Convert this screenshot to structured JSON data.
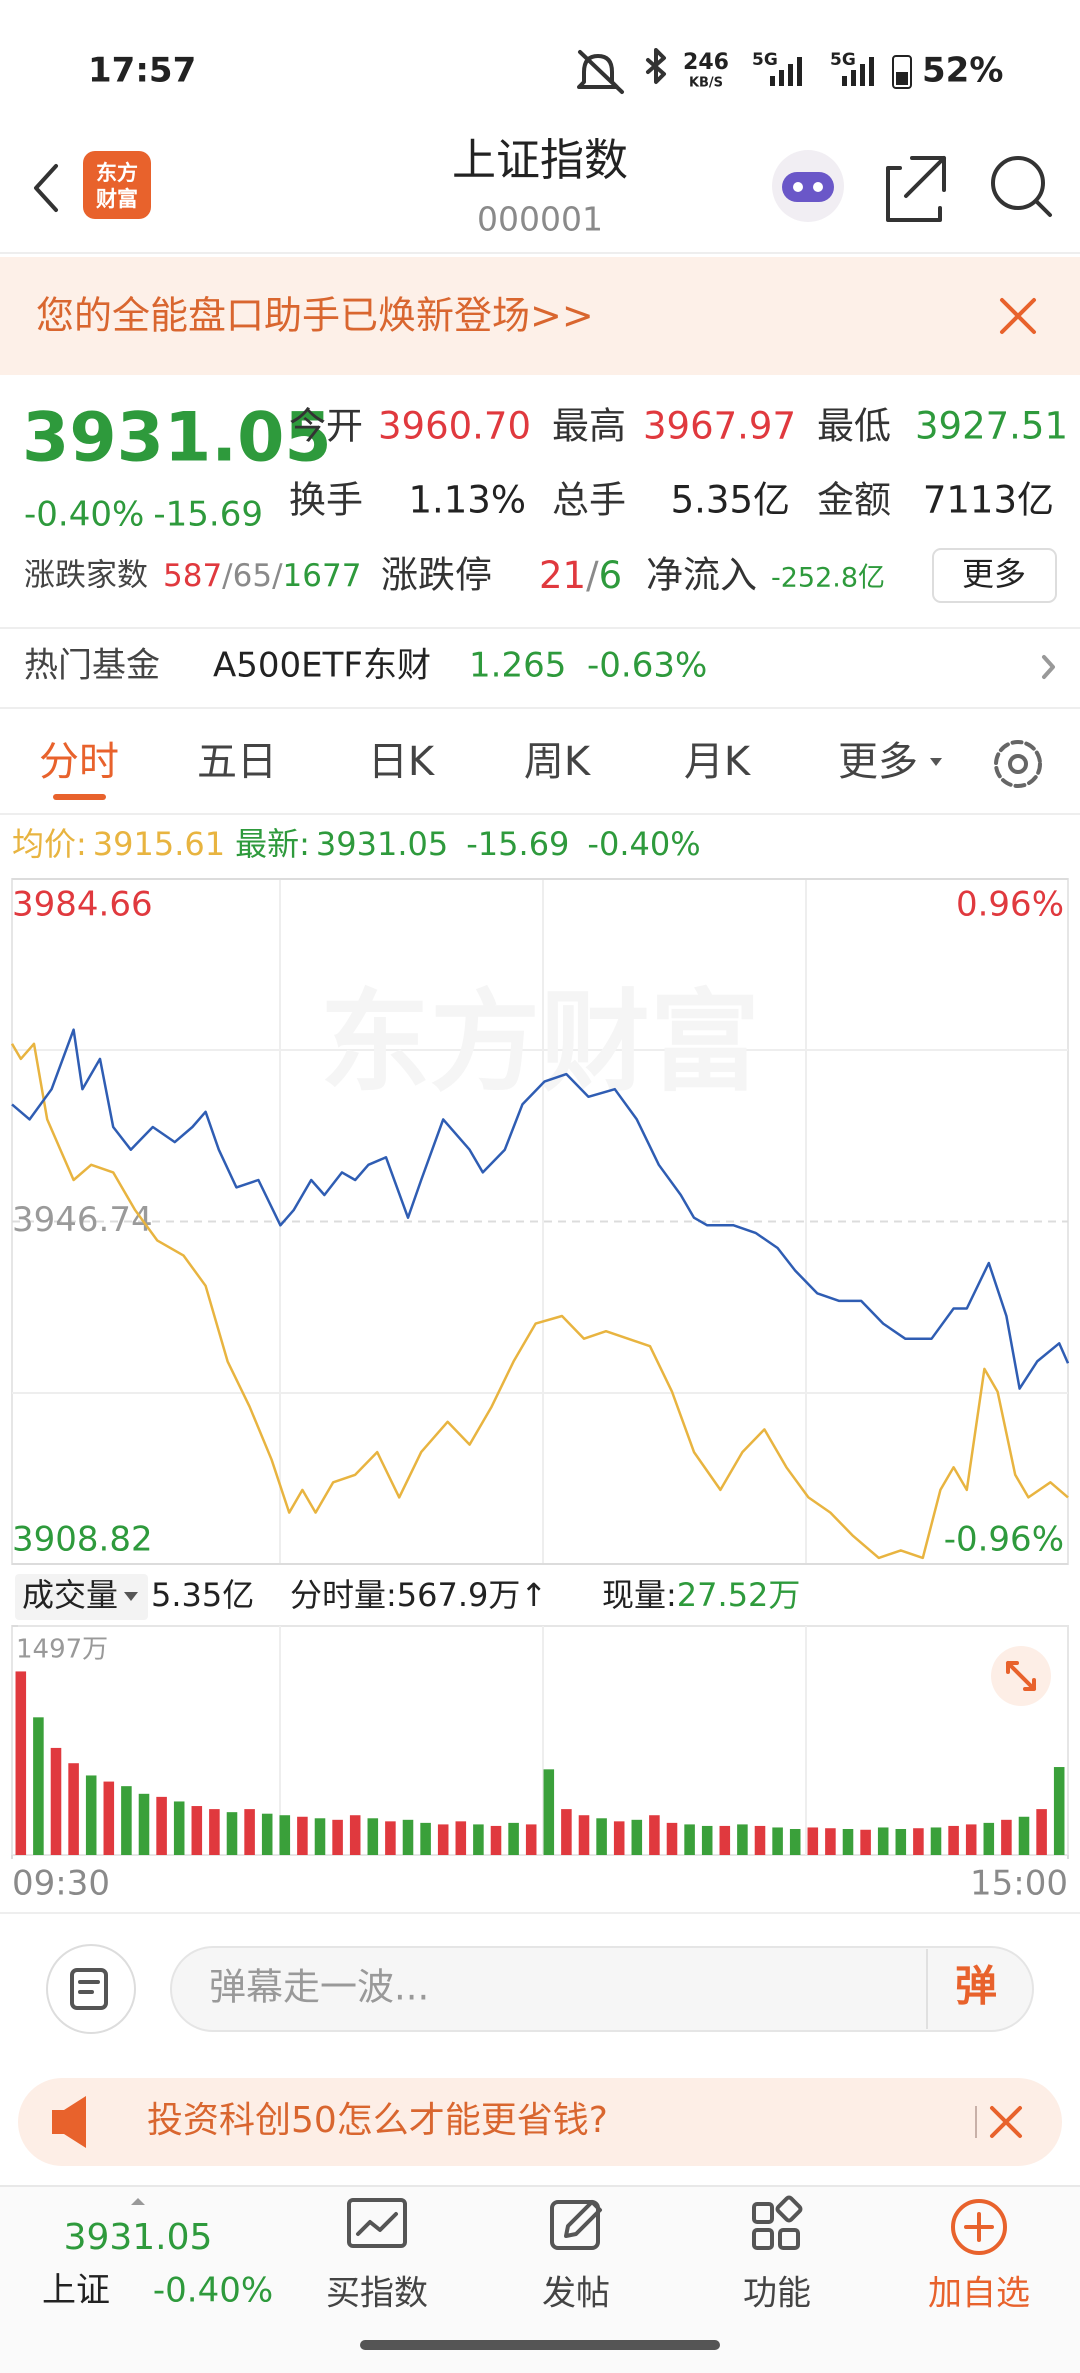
{
  "status_bar": {
    "time": "17:57",
    "net_speed": "246",
    "net_unit": "KB/S",
    "net1": "5G",
    "net2": "5G",
    "battery": "52%"
  },
  "header": {
    "logo_top": "东方",
    "logo_bottom": "财富",
    "title": "上证指数",
    "code": "000001"
  },
  "banner": {
    "text": "您的全能盘口助手已焕新登场>>"
  },
  "quote": {
    "price": "3931.05",
    "change_pct": "-0.40%",
    "change": "-15.69",
    "open_label": "今开",
    "open": "3960.70",
    "high_label": "最高",
    "high": "3967.97",
    "low_label": "最低",
    "low": "3927.51",
    "turnover_label": "换手",
    "turnover": "1.13%",
    "volume_label": "总手",
    "volume": "5.35亿",
    "amount_label": "金额",
    "amount": "7113亿",
    "breadth_label": "涨跌家数",
    "breadth": [
      "587",
      "/",
      "65",
      "/",
      "1677"
    ],
    "limit_label": "涨跌停",
    "limit": [
      "21",
      "/",
      "6"
    ],
    "inflow_label": "净流入",
    "inflow": "-252.8亿",
    "more": "更多"
  },
  "hot_fund": {
    "label": "热门基金",
    "name": "A500ETF东财",
    "price": "1.265",
    "change": "-0.63%"
  },
  "tabs": [
    "分时",
    "五日",
    "日K",
    "周K",
    "月K",
    "更多"
  ],
  "info_line": {
    "avg_label": "均价:",
    "avg": "3915.61",
    "last_label": "最新:",
    "last": "3931.05",
    "change": "-15.69",
    "change_pct": "-0.40%"
  },
  "chart": {
    "type": "line",
    "watermark": "东方财富",
    "xlim": [
      0,
      240
    ],
    "ylim": [
      3908.82,
      3984.66
    ],
    "yticks": [
      3908.82,
      3946.74,
      3984.66
    ],
    "tick_colors": [
      "#2e9a3c",
      "#9a9a9a",
      "#e0393e"
    ],
    "y2lim": [
      -0.96,
      0.96
    ],
    "y2ticks": [
      {
        "value": -0.96,
        "label": "-0.96%"
      },
      {
        "value": 0.96,
        "label": "0.96%"
      }
    ],
    "series": [
      {
        "color": "#2f5db3",
        "x": [
          0,
          4,
          9,
          14,
          16,
          20,
          23,
          27,
          32,
          37,
          41,
          44,
          47,
          51,
          56,
          61,
          64,
          68,
          71,
          75,
          78,
          81,
          85,
          90,
          93,
          98,
          104,
          107,
          112,
          116,
          121,
          126,
          131,
          137,
          142,
          147,
          152,
          155,
          158,
          164,
          169,
          174,
          178,
          183,
          188,
          193,
          198,
          203,
          209,
          214,
          217,
          222,
          226,
          229,
          233,
          238,
          240
        ],
        "values": [
          3959.71,
          3958.04,
          3961.39,
          3967.97,
          3961.39,
          3964.74,
          3957.2,
          3954.69,
          3957.2,
          3955.53,
          3957.2,
          3958.88,
          3954.69,
          3950.51,
          3951.34,
          3946.32,
          3947.99,
          3951.34,
          3949.67,
          3952.18,
          3951.34,
          3953.02,
          3953.85,
          3947.16,
          3951.34,
          3958.04,
          3954.69,
          3952.18,
          3954.69,
          3959.71,
          3962.23,
          3963.06,
          3960.55,
          3961.39,
          3958.04,
          3953.02,
          3949.67,
          3947.16,
          3946.32,
          3946.32,
          3945.48,
          3943.81,
          3941.3,
          3938.79,
          3937.95,
          3937.95,
          3935.44,
          3933.76,
          3933.76,
          3937.11,
          3937.11,
          3942.14,
          3936.28,
          3928.24,
          3931.25,
          3933.26,
          3931.05
        ]
      },
      {
        "color": "#e8b440",
        "x": [
          0,
          2,
          5,
          8,
          11,
          14,
          18,
          23,
          28,
          33,
          39,
          44,
          49,
          54,
          59,
          63,
          66,
          69,
          73,
          78,
          83,
          88,
          93,
          99,
          104,
          109,
          114,
          119,
          125,
          130,
          135,
          140,
          145,
          150,
          155,
          161,
          166,
          171,
          176,
          181,
          186,
          191,
          197,
          202,
          207,
          211,
          214,
          217,
          221,
          224,
          228,
          231,
          236,
          240
        ],
        "values": [
          3966.41,
          3964.74,
          3966.41,
          3958.04,
          3954.69,
          3951.34,
          3953.02,
          3952.18,
          3947.99,
          3944.65,
          3942.97,
          3939.62,
          3931.25,
          3926.23,
          3920.37,
          3914.51,
          3917.02,
          3914.51,
          3917.86,
          3918.7,
          3921.21,
          3916.19,
          3921.21,
          3924.56,
          3922.04,
          3926.23,
          3931.25,
          3935.44,
          3936.28,
          3933.76,
          3934.6,
          3933.76,
          3932.93,
          3927.9,
          3921.21,
          3917.02,
          3921.21,
          3923.72,
          3919.53,
          3916.19,
          3914.51,
          3912.0,
          3909.49,
          3910.33,
          3909.49,
          3917.02,
          3919.53,
          3917.02,
          3930.42,
          3927.9,
          3918.7,
          3916.19,
          3917.86,
          3916.19
        ]
      }
    ]
  },
  "volume": {
    "type": "bar",
    "dropdown": "成交量",
    "total": "5.35亿",
    "minute_label": "分时量:",
    "minute": "567.9万",
    "arrow": "↑",
    "now_label": "现量:",
    "now": "27.52万",
    "ylim": [
      0,
      1497
    ],
    "yticks": [
      {
        "value": 1497,
        "label": "1497万"
      }
    ],
    "xticks": [
      {
        "value": 0,
        "label": "09:30"
      },
      {
        "value": 240,
        "label": "15:00"
      }
    ],
    "values": [
      1200,
      900,
      700,
      600,
      520,
      480,
      450,
      400,
      380,
      350,
      320,
      300,
      280,
      300,
      270,
      260,
      250,
      240,
      230,
      260,
      240,
      220,
      230,
      210,
      200,
      220,
      200,
      190,
      210,
      200,
      560,
      300,
      260,
      240,
      220,
      230,
      260,
      210,
      200,
      190,
      190,
      200,
      190,
      180,
      170,
      180,
      175,
      170,
      165,
      180,
      170,
      175,
      180,
      190,
      200,
      210,
      230,
      250,
      300,
      575
    ],
    "colors": [
      "#e0393e",
      "#3aa03a",
      "#e0393e",
      "#e0393e",
      "#3aa03a",
      "#e0393e",
      "#3aa03a",
      "#3aa03a",
      "#e0393e",
      "#3aa03a",
      "#e0393e",
      "#e0393e",
      "#3aa03a",
      "#e0393e",
      "#3aa03a",
      "#3aa03a",
      "#e0393e",
      "#3aa03a",
      "#e0393e",
      "#e0393e",
      "#3aa03a",
      "#e0393e",
      "#3aa03a",
      "#3aa03a",
      "#e0393e",
      "#e0393e",
      "#3aa03a",
      "#e0393e",
      "#3aa03a",
      "#e0393e",
      "#3aa03a",
      "#e0393e",
      "#e0393e",
      "#3aa03a",
      "#e0393e",
      "#3aa03a",
      "#e0393e",
      "#e0393e",
      "#3aa03a",
      "#3aa03a",
      "#e0393e",
      "#3aa03a",
      "#e0393e",
      "#3aa03a",
      "#3aa03a",
      "#e0393e",
      "#e0393e",
      "#3aa03a",
      "#e0393e",
      "#3aa03a",
      "#3aa03a",
      "#e0393e",
      "#3aa03a",
      "#e0393e",
      "#e0393e",
      "#3aa03a",
      "#e0393e",
      "#3aa03a",
      "#e0393e",
      "#3aa03a"
    ]
  },
  "comment_bar": {
    "placeholder": "弹幕走一波...",
    "button": "弹"
  },
  "promo": {
    "text": "投资科创50怎么才能更省钱?"
  },
  "bottom_nav": {
    "index_price": "3931.05",
    "index_name": "上证",
    "index_change": "-0.40%",
    "items": [
      "买指数",
      "发帖",
      "功能",
      "加自选"
    ]
  }
}
